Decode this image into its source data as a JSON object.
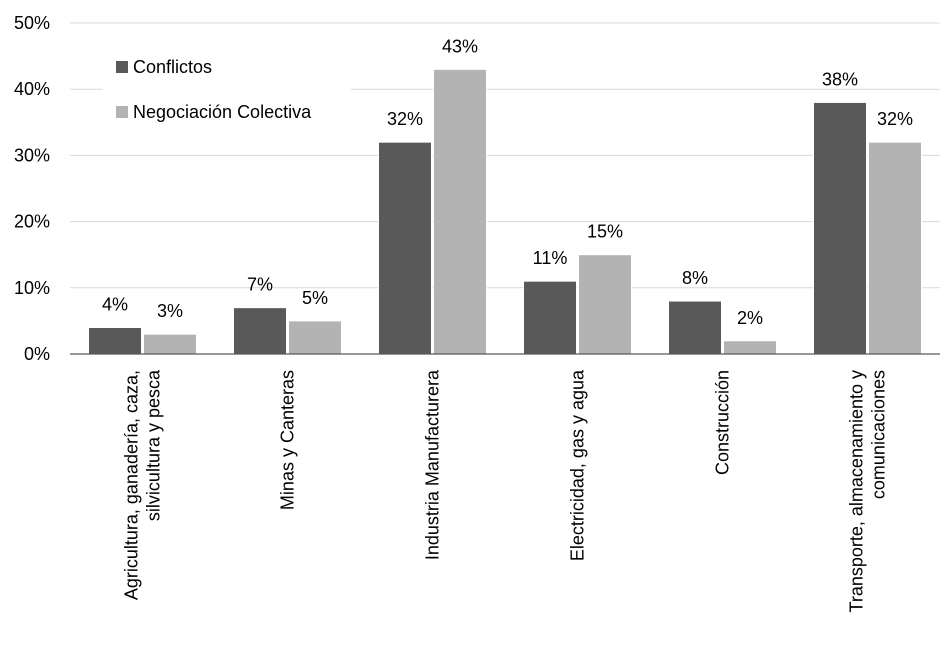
{
  "chart_data": {
    "type": "bar",
    "categories": [
      [
        "Agricultura, ganadería, caza,",
        "silvicultura y pesca"
      ],
      [
        "Minas y Canteras"
      ],
      [
        "Industria Manufacturera"
      ],
      [
        "Electricidad, gas y agua"
      ],
      [
        "Construcción"
      ],
      [
        "Transporte, almacenamiento y",
        "comunicaciones"
      ]
    ],
    "series": [
      {
        "name": "Conflictos",
        "values": [
          4,
          7,
          32,
          11,
          8,
          38
        ],
        "labels": [
          "4%",
          "7%",
          "32%",
          "11%",
          "8%",
          "38%"
        ],
        "color": "#595959"
      },
      {
        "name": "Negociación Colectiva",
        "values": [
          3,
          5,
          43,
          15,
          2,
          32
        ],
        "labels": [
          "3%",
          "5%",
          "43%",
          "15%",
          "2%",
          "32%"
        ],
        "color": "#b3b3b3"
      }
    ],
    "y_ticks": [
      "0%",
      "10%",
      "20%",
      "30%",
      "40%",
      "50%"
    ],
    "ylim": [
      0,
      50
    ],
    "grid": true,
    "legend": "top-left",
    "title": "",
    "xlabel": "",
    "ylabel": ""
  }
}
